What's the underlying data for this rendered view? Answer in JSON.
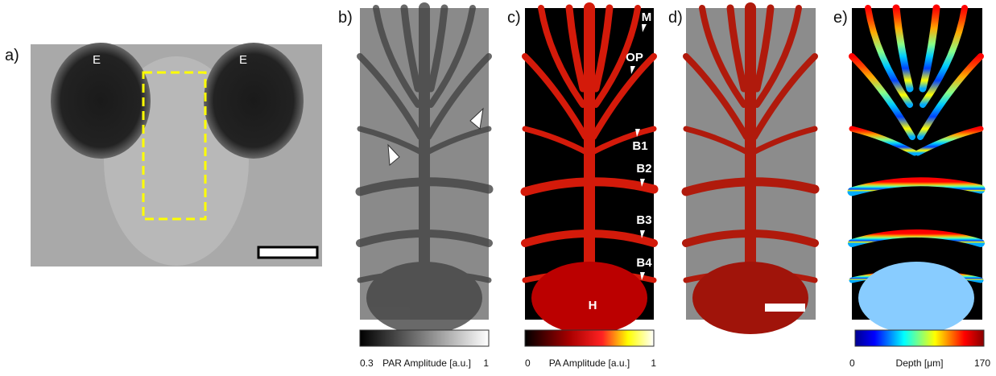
{
  "panels": [
    {
      "label": "a)",
      "annotations": [
        "E",
        "E"
      ]
    },
    {
      "label": "b)"
    },
    {
      "label": "c)",
      "annotations": [
        "M",
        "OP",
        "B1",
        "B2",
        "B3",
        "B4",
        "H"
      ]
    },
    {
      "label": "d)"
    },
    {
      "label": "e)"
    }
  ],
  "colorbars": [
    {
      "min": 0.3,
      "title": "PAR Amplitude [a.u.]",
      "max": 1
    },
    {
      "min": 0,
      "title": "PA Amplitude [a.u.]",
      "max": 1
    },
    {
      "min": 0,
      "title": "Depth [μm]",
      "max": 170
    }
  ]
}
